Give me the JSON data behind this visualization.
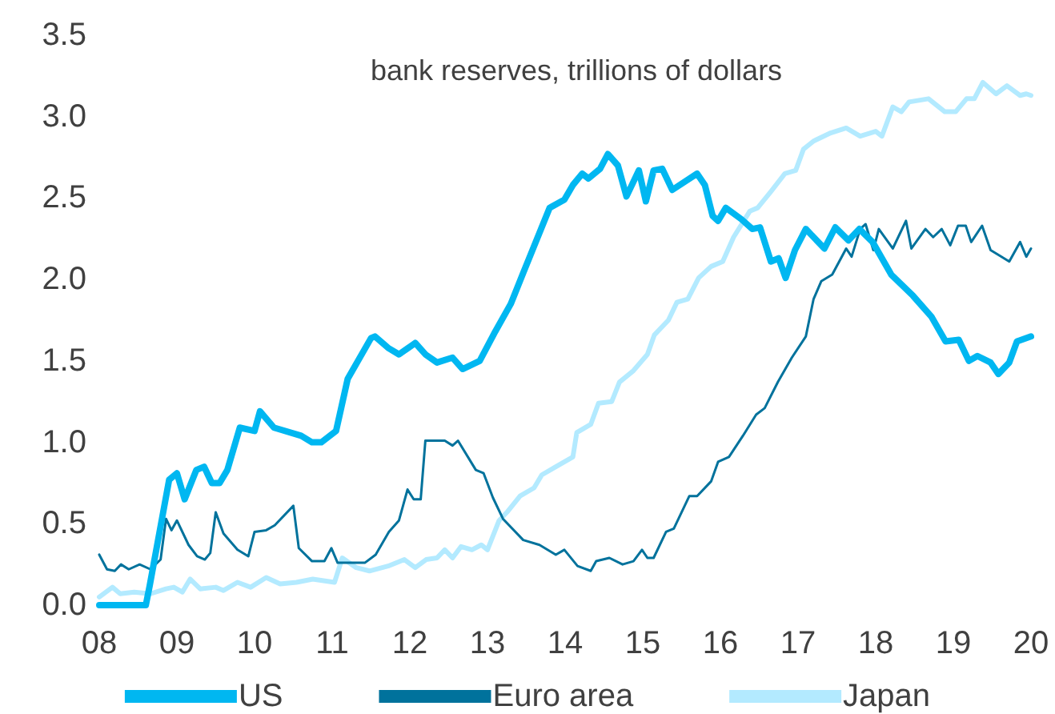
{
  "chart_data": {
    "type": "line",
    "title": "bank reserves, trillions of dollars",
    "legend": "bottom",
    "grid": false,
    "marker": "none",
    "line_style": "solid",
    "xlim": [
      2008,
      2020
    ],
    "xticks": [
      {
        "value": 2008,
        "label": "08"
      },
      {
        "value": 2009,
        "label": "09"
      },
      {
        "value": 2010,
        "label": "10"
      },
      {
        "value": 2011,
        "label": "11"
      },
      {
        "value": 2012,
        "label": "12"
      },
      {
        "value": 2013,
        "label": "13"
      },
      {
        "value": 2014,
        "label": "14"
      },
      {
        "value": 2015,
        "label": "15"
      },
      {
        "value": 2016,
        "label": "16"
      },
      {
        "value": 2017,
        "label": "17"
      },
      {
        "value": 2018,
        "label": "18"
      },
      {
        "value": 2019,
        "label": "19"
      },
      {
        "value": 2020,
        "label": "20"
      }
    ],
    "ylim": [
      0,
      3.5
    ],
    "yticks": [
      {
        "value": 0,
        "label": "0.0"
      },
      {
        "value": 0.5,
        "label": "0.5"
      },
      {
        "value": 1,
        "label": "1.0"
      },
      {
        "value": 1.5,
        "label": "1.5"
      },
      {
        "value": 2,
        "label": "2.0"
      },
      {
        "value": 2.5,
        "label": "2.5"
      },
      {
        "value": 3,
        "label": "3.0"
      },
      {
        "value": 3.5,
        "label": "3.5"
      }
    ],
    "series": [
      {
        "name": "US",
        "color": "#00b7f1",
        "x": [
          2008,
          2008.6,
          2008.65,
          2008.9,
          2009.0,
          2009.1,
          2009.25,
          2009.35,
          2009.45,
          2009.55,
          2009.65,
          2009.81,
          2010.0,
          2010.07,
          2010.25,
          2010.6,
          2010.74,
          2010.86,
          2011.05,
          2011.2,
          2011.5,
          2011.55,
          2011.72,
          2011.86,
          2012.07,
          2012.2,
          2012.35,
          2012.55,
          2012.68,
          2012.9,
          2013.1,
          2013.3,
          2013.46,
          2013.8,
          2013.99,
          2014.1,
          2014.22,
          2014.3,
          2014.45,
          2014.55,
          2014.68,
          2014.79,
          2014.95,
          2015.04,
          2015.14,
          2015.25,
          2015.38,
          2015.7,
          2015.8,
          2015.9,
          2015.97,
          2016.07,
          2016.27,
          2016.41,
          2016.51,
          2016.65,
          2016.75,
          2016.84,
          2016.96,
          2017.1,
          2017.34,
          2017.48,
          2017.65,
          2017.79,
          2017.96,
          2018.2,
          2018.48,
          2018.72,
          2018.9,
          2019.07,
          2019.2,
          2019.31,
          2019.48,
          2019.58,
          2019.72,
          2019.82,
          2020
        ],
        "values": [
          0,
          0,
          0.12,
          0.77,
          0.81,
          0.65,
          0.83,
          0.85,
          0.75,
          0.75,
          0.83,
          1.09,
          1.07,
          1.19,
          1.09,
          1.04,
          1.0,
          1.0,
          1.07,
          1.39,
          1.64,
          1.65,
          1.58,
          1.54,
          1.61,
          1.54,
          1.49,
          1.52,
          1.45,
          1.5,
          1.68,
          1.85,
          2.04,
          2.44,
          2.49,
          2.58,
          2.65,
          2.62,
          2.68,
          2.77,
          2.7,
          2.51,
          2.67,
          2.48,
          2.67,
          2.68,
          2.55,
          2.65,
          2.58,
          2.39,
          2.36,
          2.44,
          2.37,
          2.31,
          2.32,
          2.11,
          2.13,
          2.01,
          2.18,
          2.31,
          2.19,
          2.32,
          2.24,
          2.31,
          2.23,
          2.03,
          1.9,
          1.77,
          1.62,
          1.63,
          1.5,
          1.53,
          1.49,
          1.42,
          1.49,
          1.62,
          1.65
        ]
      },
      {
        "name": "Euro area",
        "color": "#00729c",
        "x": [
          2008,
          2008.1,
          2008.2,
          2008.28,
          2008.38,
          2008.52,
          2008.66,
          2008.79,
          2008.86,
          2008.93,
          2009.0,
          2009.15,
          2009.26,
          2009.36,
          2009.43,
          2009.5,
          2009.6,
          2009.78,
          2009.92,
          2010.0,
          2010.15,
          2010.26,
          2010.5,
          2010.57,
          2010.74,
          2010.9,
          2010.99,
          2011.07,
          2011.42,
          2011.56,
          2011.73,
          2011.86,
          2011.97,
          2012.05,
          2012.14,
          2012.2,
          2012.3,
          2012.45,
          2012.55,
          2012.62,
          2012.85,
          2012.95,
          2013.07,
          2013.2,
          2013.46,
          2013.67,
          2013.88,
          2013.99,
          2014.16,
          2014.33,
          2014.4,
          2014.57,
          2014.74,
          2014.88,
          2014.99,
          2015.06,
          2015.14,
          2015.3,
          2015.4,
          2015.6,
          2015.7,
          2015.88,
          2015.97,
          2016.11,
          2016.29,
          2016.46,
          2016.57,
          2016.74,
          2016.92,
          2017.1,
          2017.2,
          2017.3,
          2017.44,
          2017.62,
          2017.69,
          2017.8,
          2017.87,
          2017.97,
          2018.04,
          2018.22,
          2018.39,
          2018.46,
          2018.64,
          2018.74,
          2018.85,
          2018.96,
          2019.06,
          2019.16,
          2019.23,
          2019.37,
          2019.48,
          2019.62,
          2019.72,
          2019.86,
          2019.94,
          2020
        ],
        "values": [
          0.31,
          0.22,
          0.21,
          0.25,
          0.22,
          0.25,
          0.22,
          0.28,
          0.53,
          0.46,
          0.52,
          0.37,
          0.3,
          0.28,
          0.32,
          0.57,
          0.44,
          0.34,
          0.3,
          0.45,
          0.46,
          0.49,
          0.61,
          0.35,
          0.27,
          0.27,
          0.35,
          0.26,
          0.26,
          0.31,
          0.45,
          0.52,
          0.71,
          0.65,
          0.65,
          1.01,
          1.01,
          1.01,
          0.98,
          1.01,
          0.83,
          0.81,
          0.66,
          0.53,
          0.4,
          0.37,
          0.31,
          0.34,
          0.24,
          0.21,
          0.27,
          0.29,
          0.25,
          0.27,
          0.34,
          0.29,
          0.29,
          0.45,
          0.47,
          0.67,
          0.67,
          0.76,
          0.88,
          0.91,
          1.04,
          1.17,
          1.21,
          1.37,
          1.52,
          1.65,
          1.88,
          1.99,
          2.03,
          2.19,
          2.14,
          2.31,
          2.34,
          2.18,
          2.31,
          2.19,
          2.36,
          2.19,
          2.31,
          2.26,
          2.31,
          2.21,
          2.33,
          2.33,
          2.23,
          2.33,
          2.18,
          2.14,
          2.11,
          2.23,
          2.14,
          2.19
        ]
      },
      {
        "name": "Japan",
        "color": "#b3eaff",
        "x": [
          2008,
          2008.17,
          2008.27,
          2008.45,
          2008.66,
          2008.86,
          2008.96,
          2009.07,
          2009.17,
          2009.3,
          2009.5,
          2009.6,
          2009.78,
          2009.95,
          2010.15,
          2010.33,
          2010.54,
          2010.75,
          2011.03,
          2011.13,
          2011.31,
          2011.48,
          2011.72,
          2011.93,
          2012.07,
          2012.21,
          2012.35,
          2012.45,
          2012.55,
          2012.66,
          2012.8,
          2012.92,
          2013.0,
          2013.15,
          2013.25,
          2013.42,
          2013.6,
          2013.7,
          2013.88,
          2014.1,
          2014.15,
          2014.33,
          2014.43,
          2014.6,
          2014.7,
          2014.88,
          2015.06,
          2015.15,
          2015.33,
          2015.44,
          2015.58,
          2015.72,
          2015.88,
          2016.03,
          2016.17,
          2016.38,
          2016.48,
          2016.65,
          2016.83,
          2016.97,
          2017.07,
          2017.2,
          2017.42,
          2017.62,
          2017.8,
          2018.0,
          2018.08,
          2018.22,
          2018.33,
          2018.43,
          2018.68,
          2018.89,
          2019.03,
          2019.17,
          2019.27,
          2019.38,
          2019.55,
          2019.69,
          2019.86,
          2019.94,
          2020
        ],
        "values": [
          0.05,
          0.11,
          0.07,
          0.08,
          0.07,
          0.1,
          0.11,
          0.08,
          0.16,
          0.1,
          0.11,
          0.09,
          0.14,
          0.11,
          0.17,
          0.13,
          0.14,
          0.16,
          0.14,
          0.29,
          0.23,
          0.21,
          0.24,
          0.28,
          0.23,
          0.28,
          0.29,
          0.34,
          0.29,
          0.36,
          0.34,
          0.37,
          0.34,
          0.52,
          0.57,
          0.67,
          0.72,
          0.8,
          0.85,
          0.91,
          1.06,
          1.11,
          1.24,
          1.25,
          1.37,
          1.44,
          1.54,
          1.66,
          1.75,
          1.86,
          1.88,
          2.01,
          2.08,
          2.11,
          2.26,
          2.42,
          2.44,
          2.54,
          2.65,
          2.67,
          2.8,
          2.85,
          2.9,
          2.93,
          2.88,
          2.91,
          2.88,
          3.06,
          3.03,
          3.09,
          3.11,
          3.03,
          3.03,
          3.11,
          3.11,
          3.21,
          3.14,
          3.19,
          3.13,
          3.14,
          3.13
        ]
      }
    ]
  }
}
